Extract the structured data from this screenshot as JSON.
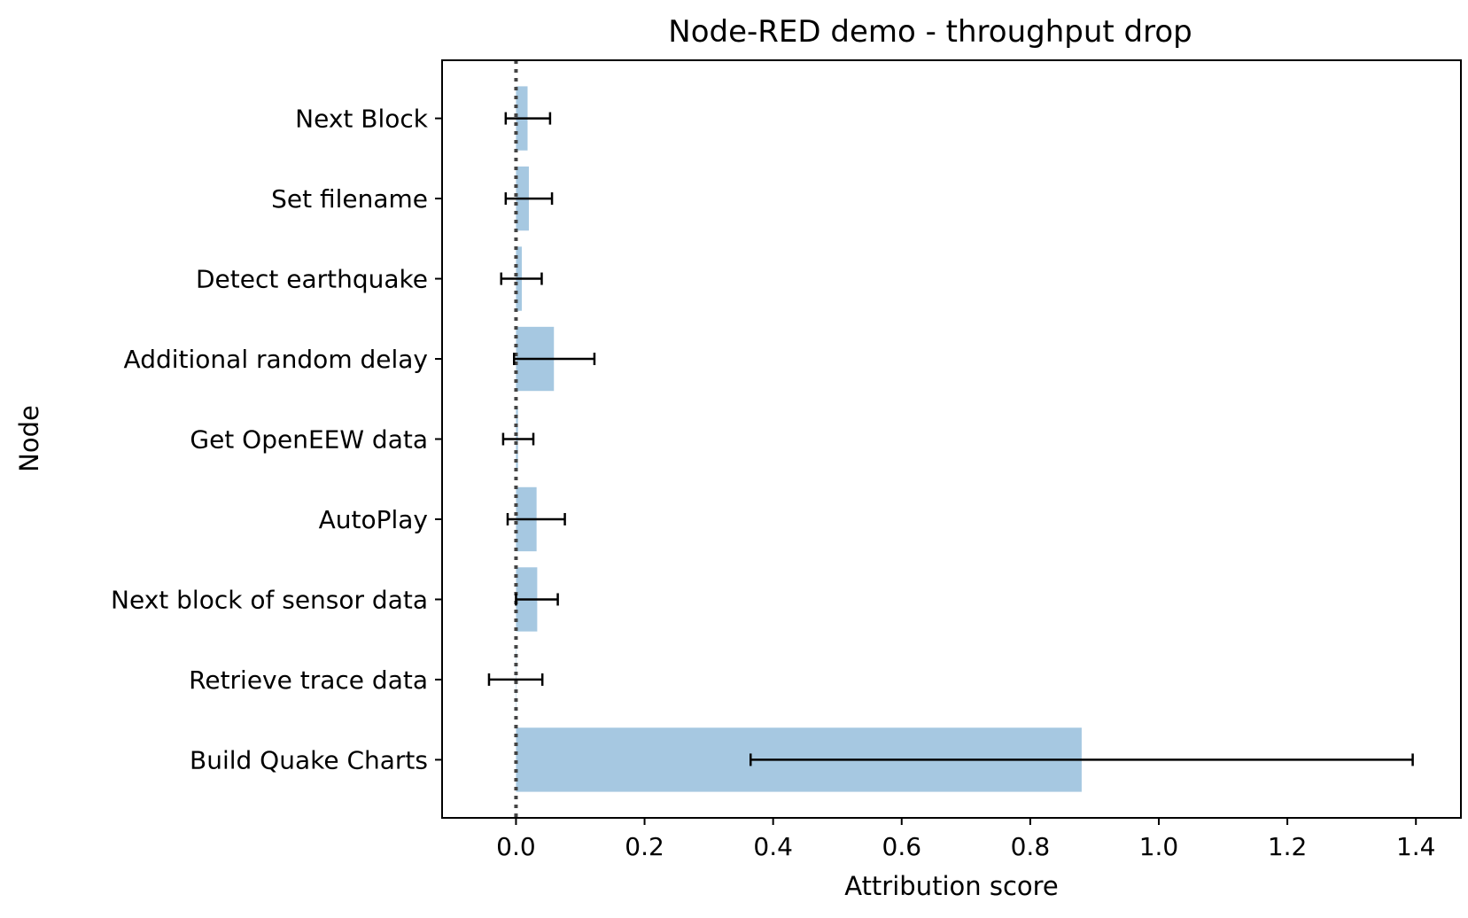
{
  "chart_data": {
    "type": "bar",
    "orientation": "horizontal",
    "title": "Node-RED demo - throughput drop",
    "xlabel": "Attribution score",
    "ylabel": "Node",
    "xlim": [
      -0.115,
      1.47
    ],
    "xticks": [
      0.0,
      0.2,
      0.4,
      0.6,
      0.8,
      1.0,
      1.2,
      1.4
    ],
    "xtick_labels": [
      "0.0",
      "0.2",
      "0.4",
      "0.6",
      "0.8",
      "1.0",
      "1.2",
      "1.4"
    ],
    "categories": [
      "Next Block",
      "Set filename",
      "Detect earthquake",
      "Additional random delay",
      "Get OpenEEW data",
      "AutoPlay",
      "Next block of sensor data",
      "Retrieve trace data",
      "Build Quake Charts"
    ],
    "values": [
      0.018,
      0.02,
      0.009,
      0.059,
      0.003,
      0.032,
      0.033,
      0.0,
      0.88
    ],
    "error_low": [
      -0.016,
      -0.016,
      -0.023,
      -0.003,
      -0.02,
      -0.013,
      0.0,
      -0.042,
      0.365
    ],
    "error_high": [
      0.053,
      0.056,
      0.04,
      0.122,
      0.027,
      0.076,
      0.065,
      0.041,
      1.395
    ],
    "reference_line": 0.0,
    "grid": false,
    "colors": {
      "bar": "#a6c8e1",
      "errorbar": "#000000",
      "reference_line": "#444444",
      "frame": "#000000"
    }
  }
}
